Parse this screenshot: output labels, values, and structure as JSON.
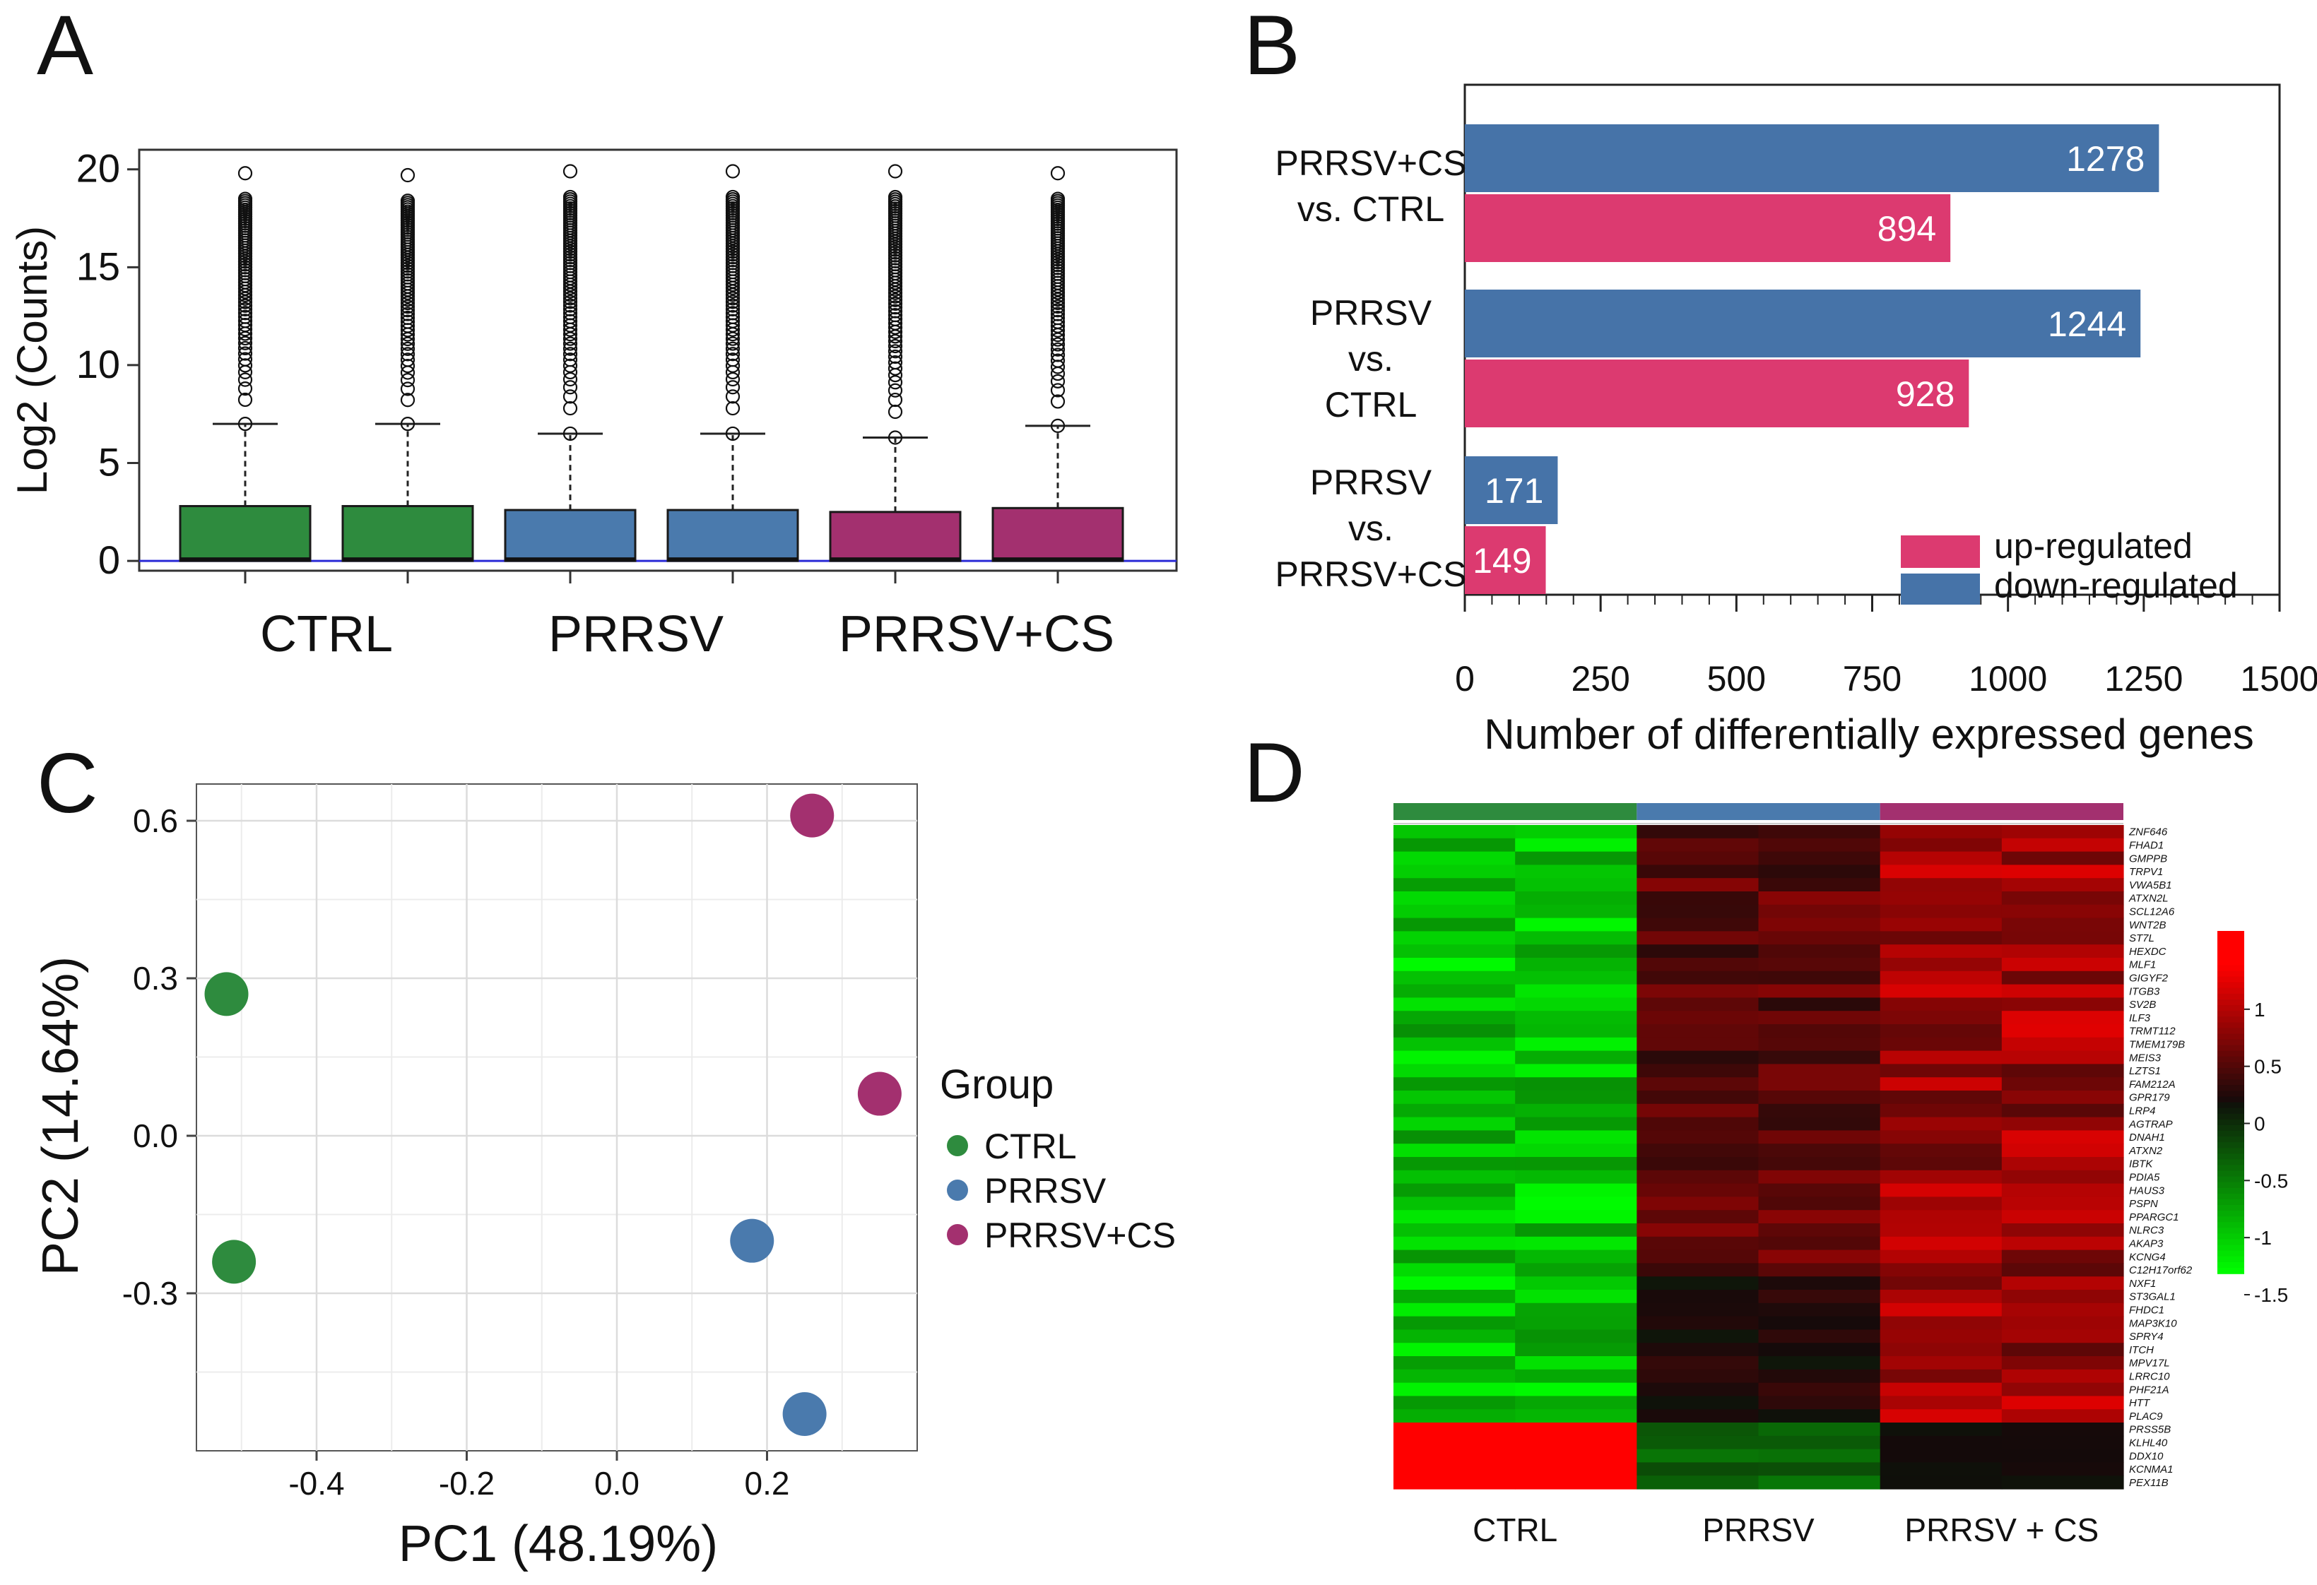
{
  "panels": {
    "a": "A",
    "b": "B",
    "c": "C",
    "d": "D"
  },
  "colors": {
    "ctrl": "#2e8b3e",
    "prrsv": "#4a7aad",
    "prrsv_cs": "#a3306f",
    "up": "#dc3a70",
    "down": "#4673a8"
  },
  "chart_data": [
    {
      "id": "A",
      "type": "box",
      "title": "",
      "ylabel": "Log2 (Counts)",
      "ylim": [
        -0.5,
        21
      ],
      "yticks": [
        0,
        5,
        10,
        15,
        20
      ],
      "group_labels": [
        "CTRL",
        "PRRSV",
        "PRRSV+CS"
      ],
      "boxes": [
        {
          "group": "CTRL",
          "q1": 0,
          "median": 0,
          "q3": 2.8,
          "whisker_high": 7.0,
          "outlier_min": 7.0,
          "outlier_max": 19.8
        },
        {
          "group": "CTRL",
          "q1": 0,
          "median": 0,
          "q3": 2.8,
          "whisker_high": 7.0,
          "outlier_min": 7.0,
          "outlier_max": 19.7
        },
        {
          "group": "PRRSV",
          "q1": 0,
          "median": 0,
          "q3": 2.6,
          "whisker_high": 6.5,
          "outlier_min": 6.5,
          "outlier_max": 19.9
        },
        {
          "group": "PRRSV",
          "q1": 0,
          "median": 0,
          "q3": 2.6,
          "whisker_high": 6.5,
          "outlier_min": 6.5,
          "outlier_max": 19.9
        },
        {
          "group": "PRRSV+CS",
          "q1": 0,
          "median": 0,
          "q3": 2.5,
          "whisker_high": 6.3,
          "outlier_min": 6.3,
          "outlier_max": 19.9
        },
        {
          "group": "PRRSV+CS",
          "q1": 0,
          "median": 0,
          "q3": 2.7,
          "whisker_high": 6.9,
          "outlier_min": 6.9,
          "outlier_max": 19.8
        }
      ]
    },
    {
      "id": "B",
      "type": "bar",
      "orientation": "horizontal",
      "xlabel": "Number of differentially expressed genes",
      "xlim": [
        0,
        1500
      ],
      "xticks": [
        0,
        250,
        500,
        750,
        1000,
        1250,
        1500
      ],
      "categories": [
        [
          "PRRSV+CS",
          "vs. CTRL"
        ],
        [
          "PRRSV",
          "vs.",
          "CTRL"
        ],
        [
          "PRRSV",
          "vs.",
          "PRRSV+CS"
        ]
      ],
      "series": [
        {
          "name": "down-regulated",
          "values": [
            1278,
            1244,
            171
          ]
        },
        {
          "name": "up-regulated",
          "values": [
            894,
            928,
            149
          ]
        }
      ],
      "legend": [
        "up-regulated",
        "down-regulated"
      ],
      "legend_position": "bottom-right"
    },
    {
      "id": "C",
      "type": "scatter",
      "xlabel": "PC1 (48.19%)",
      "ylabel": "PC2 (14.64%)",
      "xlim": [
        -0.56,
        0.4
      ],
      "ylim": [
        -0.6,
        0.67
      ],
      "xticks": [
        -0.4,
        -0.2,
        0.0,
        0.2
      ],
      "yticks": [
        -0.3,
        0.0,
        0.3,
        0.6
      ],
      "grid": true,
      "legend_title": "Group",
      "legend_position": "right",
      "series": [
        {
          "name": "CTRL",
          "points": [
            [
              -0.52,
              0.27
            ],
            [
              -0.51,
              -0.24
            ]
          ]
        },
        {
          "name": "PRRSV",
          "points": [
            [
              0.18,
              -0.2
            ],
            [
              0.25,
              -0.53
            ]
          ]
        },
        {
          "name": "PRRSV+CS",
          "points": [
            [
              0.26,
              0.61
            ],
            [
              0.35,
              0.08
            ]
          ]
        }
      ]
    },
    {
      "id": "D",
      "type": "heatmap",
      "column_groups": [
        "CTRL",
        "PRRSV",
        "PRRSV + CS"
      ],
      "columns_per_group": 2,
      "color_scale": {
        "min": -1.5,
        "max": 1.5,
        "ticks": [
          1,
          0.5,
          0,
          -0.5,
          -1,
          -1.5
        ]
      },
      "genes": [
        "ZNF646",
        "FHAD1",
        "GMPPB",
        "TRPV1",
        "VWA5B1",
        "ATXN2L",
        "SCL12A6",
        "WNT2B",
        "ST7L",
        "HEXDC",
        "MLF1",
        "GIGYF2",
        "ITGB3",
        "SV2B",
        "ILF3",
        "TRMT112",
        "TMEM179B",
        "MEIS3",
        "LZTS1",
        "FAM212A",
        "GPR179",
        "LRP4",
        "AGTRAP",
        "DNAH1",
        "ATXN2",
        "IBTK",
        "PDIA5",
        "HAUS3",
        "PSPN",
        "PPARGC1",
        "NLRC3",
        "AKAP3",
        "KCNG4",
        "C12H17orf62",
        "NXF1",
        "ST3GAL1",
        "FHDC1",
        "MAP3K10",
        "SPRY4",
        "ITCH",
        "MPV17L",
        "LRRC10",
        "PHF21A",
        "HTT",
        "PLAC9",
        "PRSS5B",
        "KLHL40",
        "DDX10",
        "KCNMA1",
        "PEX11B"
      ]
    }
  ]
}
